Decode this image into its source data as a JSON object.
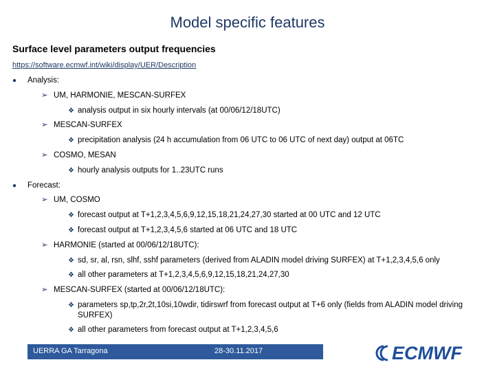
{
  "header": {
    "title": "Model specific features",
    "subtitle": "Surface level parameters output frequencies",
    "link": "https://software.ecmwf.int/wiki/display/UER/Description"
  },
  "sections": [
    {
      "label": "Analysis:",
      "items": [
        {
          "label": "UM, HARMONIE, MESCAN-SURFEX",
          "details": [
            "analysis output in six hourly intervals (at 00/06/12/18UTC)"
          ]
        },
        {
          "label": "MESCAN-SURFEX",
          "details": [
            "precipitation analysis (24 h accumulation from 06 UTC to 06 UTC of next day) output at 06TC"
          ]
        },
        {
          "label": "COSMO, MESAN",
          "details": [
            "hourly analysis outputs for 1..23UTC runs"
          ]
        }
      ]
    },
    {
      "label": "Forecast:",
      "items": [
        {
          "label": "UM, COSMO",
          "details": [
            "forecast output at T+1,2,3,4,5,6,9,12,15,18,21,24,27,30 started at 00 UTC and 12 UTC",
            "forecast output at T+1,2,3,4,5,6 started at 06 UTC and 18 UTC"
          ]
        },
        {
          "label": "HARMONIE (started at 00/06/12/18UTC):",
          "details": [
            "sd, sr, al, rsn, slhf, sshf parameters (derived from ALADIN model driving SURFEX) at T+1,2,3,4,5,6 only",
            "all other parameters at T+1,2,3,4,5,6,9,12,15,18,21,24,27,30"
          ]
        },
        {
          "label": "MESCAN-SURFEX (started at 00/06/12/18UTC):",
          "details": [
            "parameters sp,tp,2r,2t,10si,10wdir, tidirswrf from forecast output at T+6 only (fields from ALADIN model driving SURFEX)",
            "all other parameters from forecast output at T+1,2,3,4,5,6"
          ]
        }
      ]
    }
  ],
  "footer": {
    "event": "UERRA GA Tarragona",
    "date": "28-30.11.2017",
    "logo": "ECMWF"
  }
}
